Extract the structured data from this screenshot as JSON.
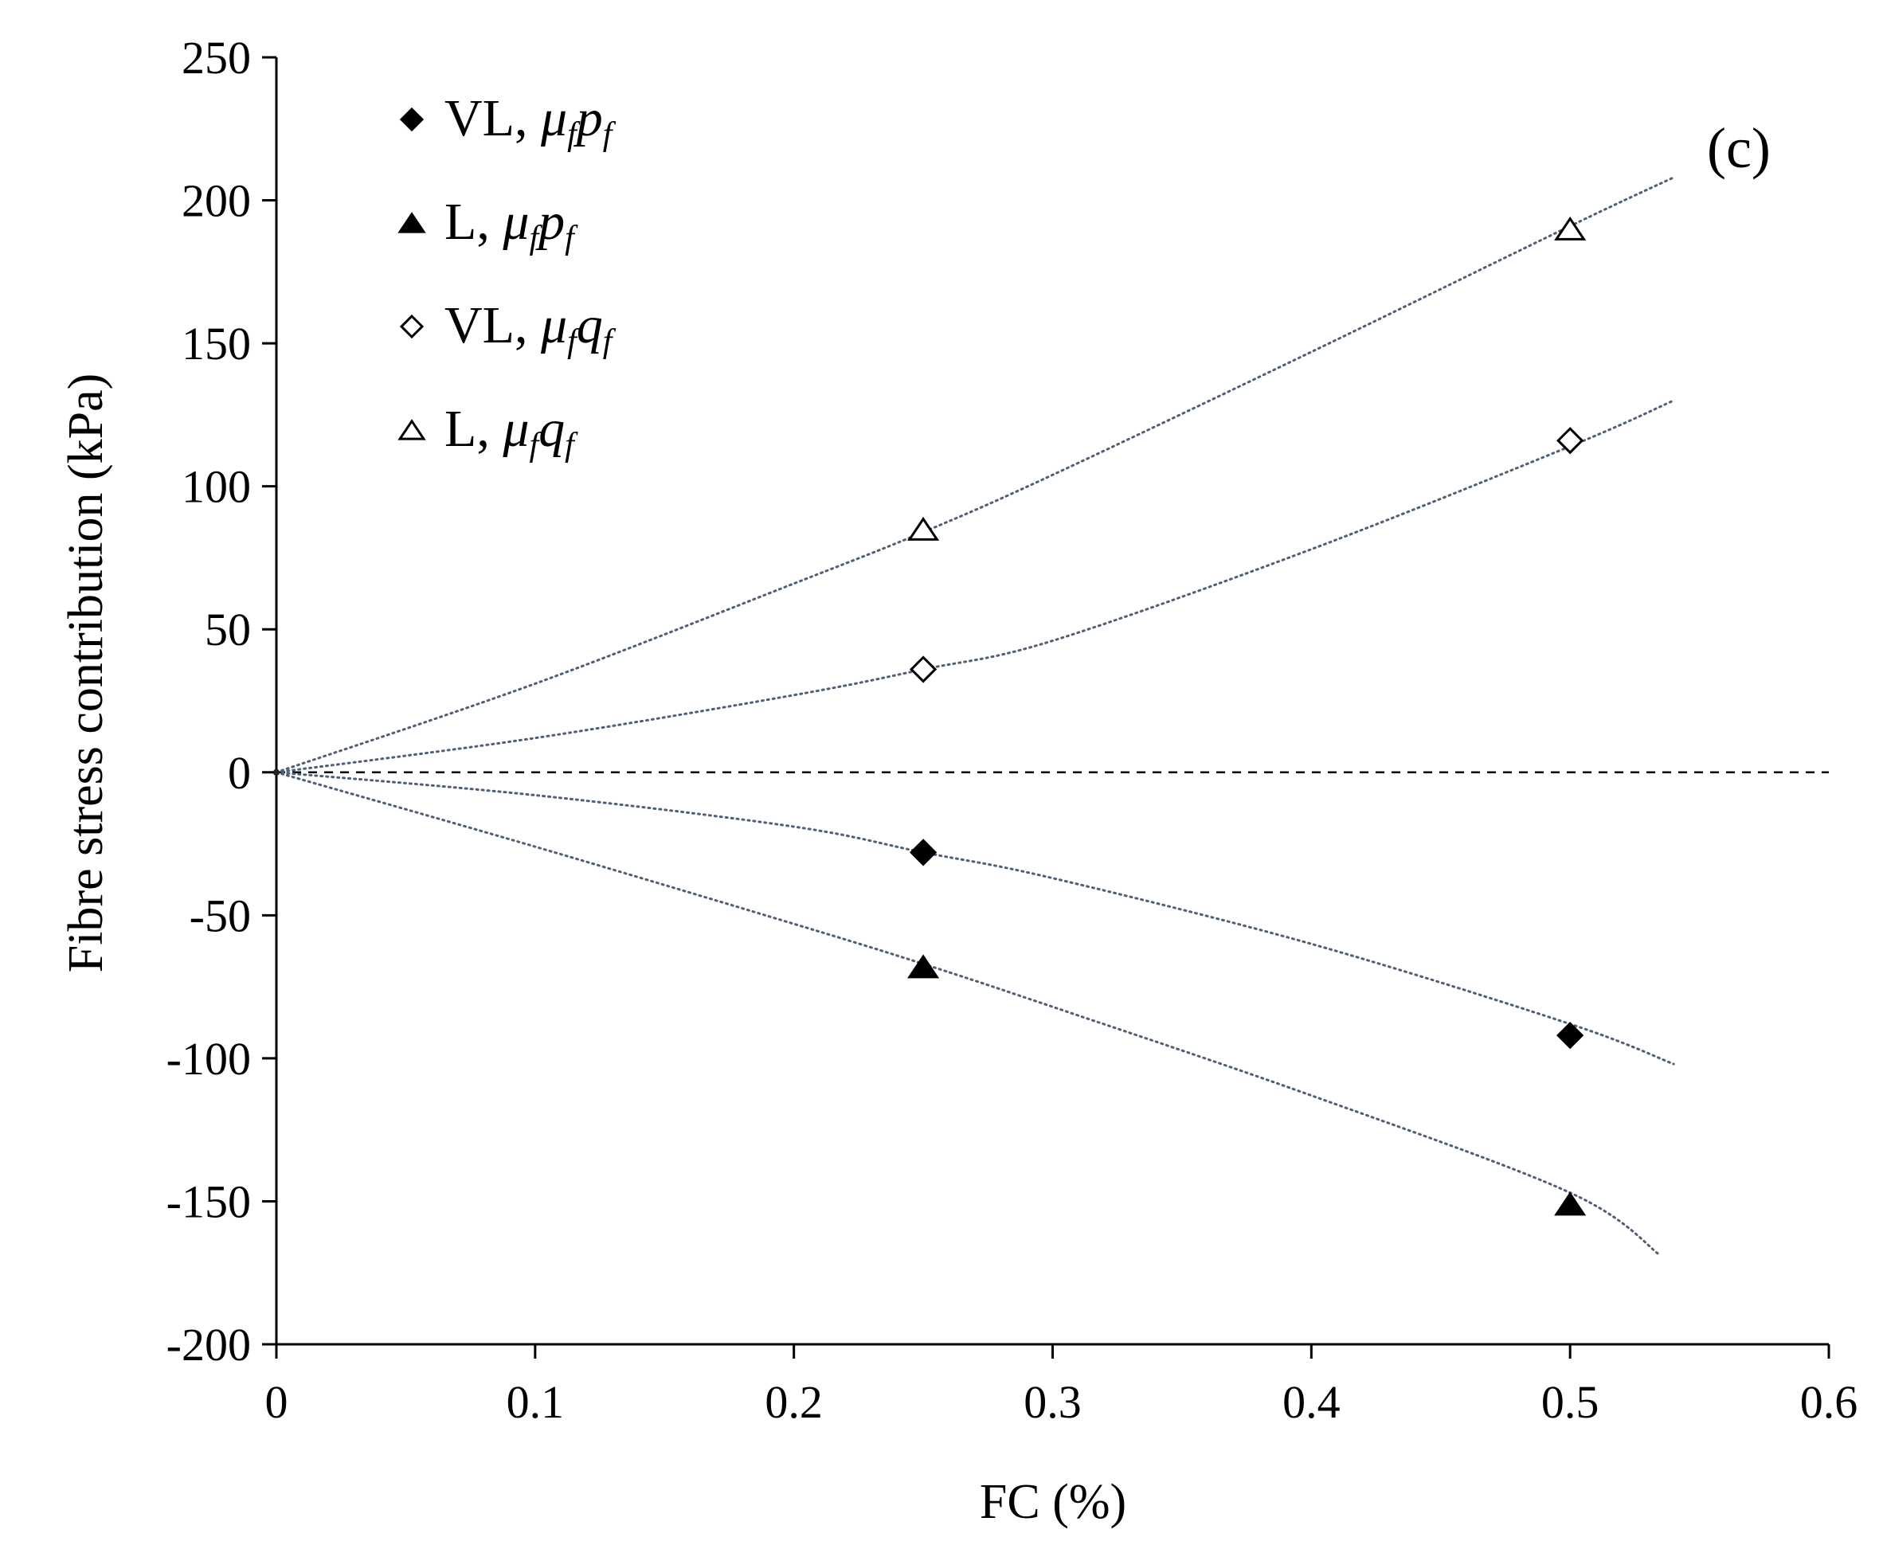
{
  "chart_data": {
    "type": "scatter",
    "title": "",
    "panel_label": "(c)",
    "xlabel": "FC (%)",
    "ylabel": "Fibre stress contribution (kPa)",
    "xlim": [
      0,
      0.6
    ],
    "ylim": [
      -200,
      250
    ],
    "x_ticks": [
      0,
      0.1,
      0.2,
      0.3,
      0.4,
      0.5,
      0.6
    ],
    "x_tick_labels": [
      "0",
      "0.1",
      "0.2",
      "0.3",
      "0.4",
      "0.5",
      "0.6"
    ],
    "y_ticks": [
      -200,
      -150,
      -100,
      -50,
      0,
      50,
      100,
      150,
      200,
      250
    ],
    "y_tick_labels": [
      "-200",
      "-150",
      "-100",
      "-50",
      "0",
      "50",
      "100",
      "150",
      "200",
      "250"
    ],
    "grid": false,
    "reference_line": {
      "y": 0,
      "style": "dashed"
    },
    "legend_position": "top-left",
    "series": [
      {
        "name": "VL, μ_f p_f",
        "legend_prefix": "VL, ",
        "legend_mu": "μ",
        "legend_mu_sub": "f",
        "legend_var": "p",
        "legend_var_sub": "f",
        "marker": "diamond",
        "filled": true,
        "points": [
          [
            0,
            0
          ],
          [
            0.25,
            -28
          ],
          [
            0.5,
            -92
          ]
        ],
        "trend": [
          [
            0,
            0
          ],
          [
            0.1,
            -8
          ],
          [
            0.2,
            -19
          ],
          [
            0.25,
            -28
          ],
          [
            0.3,
            -37
          ],
          [
            0.4,
            -60
          ],
          [
            0.5,
            -88
          ],
          [
            0.54,
            -102
          ]
        ]
      },
      {
        "name": "L, μ_f p_f",
        "legend_prefix": "L, ",
        "legend_mu": "μ",
        "legend_mu_sub": "f",
        "legend_var": "p",
        "legend_var_sub": "f",
        "marker": "triangle",
        "filled": true,
        "points": [
          [
            0,
            0
          ],
          [
            0.25,
            -68
          ],
          [
            0.5,
            -151
          ]
        ],
        "trend": [
          [
            0,
            0
          ],
          [
            0.1,
            -26
          ],
          [
            0.2,
            -53
          ],
          [
            0.25,
            -67
          ],
          [
            0.3,
            -82
          ],
          [
            0.4,
            -113
          ],
          [
            0.5,
            -147
          ],
          [
            0.535,
            -169
          ]
        ]
      },
      {
        "name": "VL, μ_f q_f",
        "legend_prefix": "VL, ",
        "legend_mu": "μ",
        "legend_mu_sub": "f",
        "legend_var": "q",
        "legend_var_sub": "f",
        "marker": "diamond",
        "filled": false,
        "points": [
          [
            0,
            0
          ],
          [
            0.25,
            36
          ],
          [
            0.5,
            116
          ]
        ],
        "trend": [
          [
            0,
            0
          ],
          [
            0.1,
            12
          ],
          [
            0.2,
            27
          ],
          [
            0.25,
            36
          ],
          [
            0.3,
            46
          ],
          [
            0.4,
            78
          ],
          [
            0.5,
            114
          ],
          [
            0.54,
            130
          ]
        ]
      },
      {
        "name": "L, μ_f q_f",
        "legend_prefix": "L, ",
        "legend_mu": "μ",
        "legend_mu_sub": "f",
        "legend_var": "q",
        "legend_var_sub": "f",
        "marker": "triangle",
        "filled": false,
        "points": [
          [
            0,
            0
          ],
          [
            0.25,
            85
          ],
          [
            0.5,
            190
          ]
        ],
        "trend": [
          [
            0,
            0
          ],
          [
            0.1,
            31
          ],
          [
            0.2,
            66
          ],
          [
            0.25,
            84
          ],
          [
            0.3,
            104
          ],
          [
            0.4,
            147
          ],
          [
            0.5,
            191
          ],
          [
            0.54,
            208
          ]
        ]
      }
    ],
    "colors": {
      "axis": "#000000",
      "marker": "#000000",
      "trend": "#4f5f75",
      "background": "#ffffff"
    }
  }
}
